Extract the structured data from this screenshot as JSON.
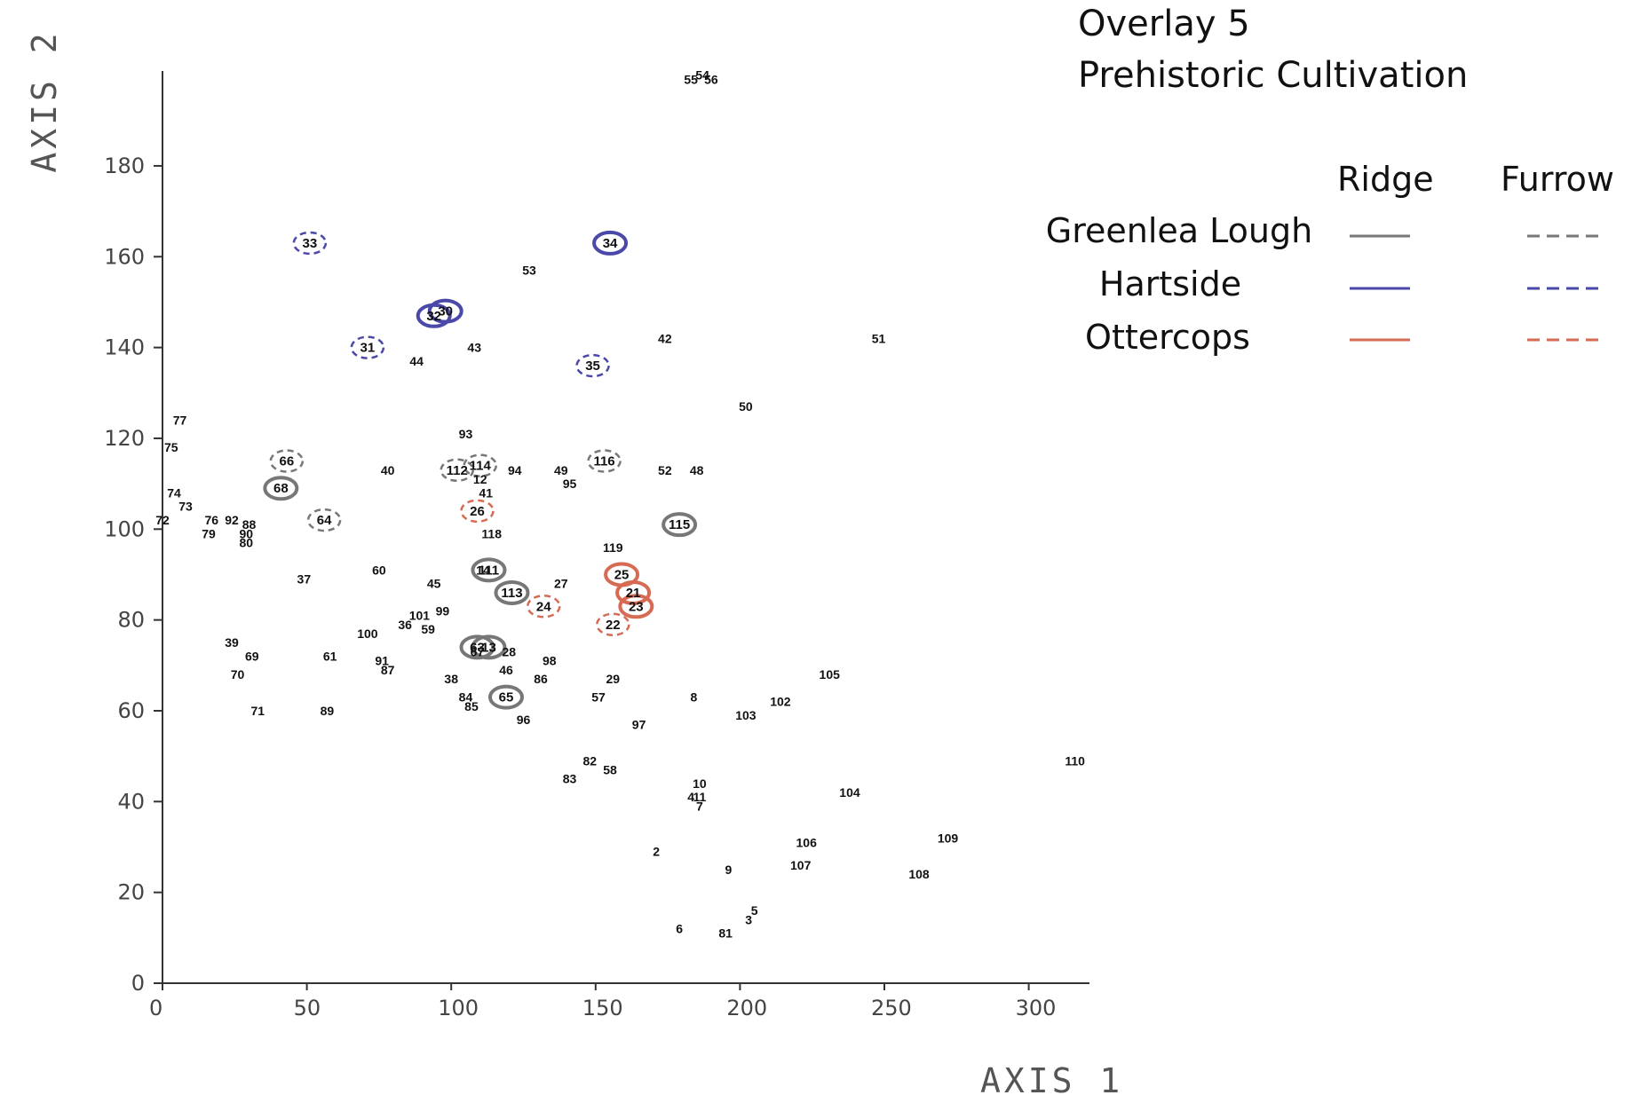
{
  "title": [
    "Overlay 5",
    "Prehistoric Cultivation"
  ],
  "chart_data": {
    "type": "scatter",
    "xlabel": "AXIS 1",
    "ylabel": "AXIS 2",
    "xlim": [
      0,
      320
    ],
    "ylim": [
      0,
      195
    ],
    "xticks": [
      "0",
      "50",
      "100",
      "150",
      "200",
      "250",
      "300"
    ],
    "yticks": [
      "0",
      "20",
      "40",
      "60",
      "80",
      "100",
      "120",
      "140",
      "160",
      "180"
    ],
    "legend": {
      "headers": [
        "Ridge",
        "Furrow"
      ],
      "placement": "top-right",
      "entries": [
        {
          "name": "Greenlea Lough",
          "color": "#777777"
        },
        {
          "name": "Hartside",
          "color": "#4a48a8"
        },
        {
          "name": "Ottercops",
          "color": "#d76a52"
        }
      ]
    },
    "points": [
      {
        "label": "2",
        "x": 171,
        "y": 29
      },
      {
        "label": "3",
        "x": 203,
        "y": 14
      },
      {
        "label": "4",
        "x": 183,
        "y": 41
      },
      {
        "label": "5",
        "x": 205,
        "y": 16
      },
      {
        "label": "6",
        "x": 179,
        "y": 12
      },
      {
        "label": "7",
        "x": 186,
        "y": 39
      },
      {
        "label": "8",
        "x": 184,
        "y": 63
      },
      {
        "label": "9",
        "x": 196,
        "y": 25
      },
      {
        "label": "10",
        "x": 186,
        "y": 44
      },
      {
        "label": "11",
        "x": 186,
        "y": 41
      },
      {
        "label": "12",
        "x": 110,
        "y": 111
      },
      {
        "label": "13",
        "x": 113,
        "y": 74
      },
      {
        "label": "14",
        "x": 111,
        "y": 91
      },
      {
        "label": "21",
        "x": 163,
        "y": 86
      },
      {
        "label": "22",
        "x": 156,
        "y": 79
      },
      {
        "label": "23",
        "x": 164,
        "y": 83
      },
      {
        "label": "24",
        "x": 132,
        "y": 83
      },
      {
        "label": "25",
        "x": 159,
        "y": 90
      },
      {
        "label": "26",
        "x": 109,
        "y": 104
      },
      {
        "label": "27",
        "x": 138,
        "y": 88
      },
      {
        "label": "28",
        "x": 120,
        "y": 73
      },
      {
        "label": "29",
        "x": 156,
        "y": 67
      },
      {
        "label": "30",
        "x": 98,
        "y": 148
      },
      {
        "label": "31",
        "x": 71,
        "y": 140
      },
      {
        "label": "32",
        "x": 94,
        "y": 147
      },
      {
        "label": "33",
        "x": 51,
        "y": 163
      },
      {
        "label": "34",
        "x": 155,
        "y": 163
      },
      {
        "label": "35",
        "x": 149,
        "y": 136
      },
      {
        "label": "36",
        "x": 84,
        "y": 79
      },
      {
        "label": "37",
        "x": 49,
        "y": 89
      },
      {
        "label": "38",
        "x": 100,
        "y": 67
      },
      {
        "label": "39",
        "x": 24,
        "y": 75
      },
      {
        "label": "40",
        "x": 78,
        "y": 113
      },
      {
        "label": "41",
        "x": 112,
        "y": 108
      },
      {
        "label": "42",
        "x": 174,
        "y": 142
      },
      {
        "label": "43",
        "x": 108,
        "y": 140
      },
      {
        "label": "44",
        "x": 88,
        "y": 137
      },
      {
        "label": "45",
        "x": 94,
        "y": 88
      },
      {
        "label": "46",
        "x": 119,
        "y": 69
      },
      {
        "label": "48",
        "x": 185,
        "y": 113
      },
      {
        "label": "49",
        "x": 138,
        "y": 113
      },
      {
        "label": "50",
        "x": 202,
        "y": 127
      },
      {
        "label": "51",
        "x": 248,
        "y": 142
      },
      {
        "label": "52",
        "x": 174,
        "y": 113
      },
      {
        "label": "53",
        "x": 127,
        "y": 157
      },
      {
        "label": "54",
        "x": 187,
        "y": 200
      },
      {
        "label": "55",
        "x": 183,
        "y": 199
      },
      {
        "label": "56",
        "x": 190,
        "y": 199
      },
      {
        "label": "57",
        "x": 151,
        "y": 63
      },
      {
        "label": "58",
        "x": 155,
        "y": 47
      },
      {
        "label": "59",
        "x": 92,
        "y": 78
      },
      {
        "label": "60",
        "x": 75,
        "y": 91
      },
      {
        "label": "61",
        "x": 58,
        "y": 72
      },
      {
        "label": "63",
        "x": 109,
        "y": 74
      },
      {
        "label": "64",
        "x": 56,
        "y": 102
      },
      {
        "label": "65",
        "x": 119,
        "y": 63
      },
      {
        "label": "66",
        "x": 43,
        "y": 115
      },
      {
        "label": "67",
        "x": 109,
        "y": 73
      },
      {
        "label": "68",
        "x": 41,
        "y": 109
      },
      {
        "label": "69",
        "x": 31,
        "y": 72
      },
      {
        "label": "70",
        "x": 26,
        "y": 68
      },
      {
        "label": "71",
        "x": 33,
        "y": 60
      },
      {
        "label": "72",
        "x": 0,
        "y": 102
      },
      {
        "label": "73",
        "x": 8,
        "y": 105
      },
      {
        "label": "74",
        "x": 4,
        "y": 108
      },
      {
        "label": "75",
        "x": 3,
        "y": 118
      },
      {
        "label": "76",
        "x": 17,
        "y": 102
      },
      {
        "label": "77",
        "x": 6,
        "y": 124
      },
      {
        "label": "79",
        "x": 16,
        "y": 99
      },
      {
        "label": "80",
        "x": 29,
        "y": 97
      },
      {
        "label": "81",
        "x": 195,
        "y": 11
      },
      {
        "label": "82",
        "x": 148,
        "y": 49
      },
      {
        "label": "83",
        "x": 141,
        "y": 45
      },
      {
        "label": "84",
        "x": 105,
        "y": 63
      },
      {
        "label": "85",
        "x": 107,
        "y": 61
      },
      {
        "label": "86",
        "x": 131,
        "y": 67
      },
      {
        "label": "87",
        "x": 78,
        "y": 69
      },
      {
        "label": "88",
        "x": 30,
        "y": 101
      },
      {
        "label": "89",
        "x": 57,
        "y": 60
      },
      {
        "label": "90",
        "x": 29,
        "y": 99
      },
      {
        "label": "91",
        "x": 76,
        "y": 71
      },
      {
        "label": "92",
        "x": 24,
        "y": 102
      },
      {
        "label": "93",
        "x": 105,
        "y": 121
      },
      {
        "label": "94",
        "x": 122,
        "y": 113
      },
      {
        "label": "95",
        "x": 141,
        "y": 110
      },
      {
        "label": "96",
        "x": 125,
        "y": 58
      },
      {
        "label": "97",
        "x": 165,
        "y": 57
      },
      {
        "label": "98",
        "x": 134,
        "y": 71
      },
      {
        "label": "99",
        "x": 97,
        "y": 82
      },
      {
        "label": "100",
        "x": 71,
        "y": 77
      },
      {
        "label": "101",
        "x": 89,
        "y": 81
      },
      {
        "label": "102",
        "x": 214,
        "y": 62
      },
      {
        "label": "103",
        "x": 202,
        "y": 59
      },
      {
        "label": "104",
        "x": 238,
        "y": 42
      },
      {
        "label": "105",
        "x": 231,
        "y": 68
      },
      {
        "label": "106",
        "x": 223,
        "y": 31
      },
      {
        "label": "107",
        "x": 221,
        "y": 26
      },
      {
        "label": "108",
        "x": 262,
        "y": 24
      },
      {
        "label": "109",
        "x": 272,
        "y": 32
      },
      {
        "label": "110",
        "x": 316,
        "y": 49
      },
      {
        "label": "111",
        "x": 113,
        "y": 91
      },
      {
        "label": "112",
        "x": 102,
        "y": 113
      },
      {
        "label": "113",
        "x": 121,
        "y": 86
      },
      {
        "label": "114",
        "x": 110,
        "y": 114
      },
      {
        "label": "115",
        "x": 179,
        "y": 101
      },
      {
        "label": "116",
        "x": 153,
        "y": 115
      },
      {
        "label": "118",
        "x": 114,
        "y": 99
      },
      {
        "label": "119",
        "x": 156,
        "y": 96
      }
    ],
    "highlights": [
      {
        "label": "33",
        "x": 51,
        "y": 163,
        "site": "Hartside",
        "type": "Furrow"
      },
      {
        "label": "34",
        "x": 155,
        "y": 163,
        "site": "Hartside",
        "type": "Ridge"
      },
      {
        "label": "30",
        "x": 98,
        "y": 148,
        "site": "Hartside",
        "type": "Ridge"
      },
      {
        "label": "32",
        "x": 94,
        "y": 147,
        "site": "Hartside",
        "type": "Ridge"
      },
      {
        "label": "31",
        "x": 71,
        "y": 140,
        "site": "Hartside",
        "type": "Furrow"
      },
      {
        "label": "35",
        "x": 149,
        "y": 136,
        "site": "Hartside",
        "type": "Furrow"
      },
      {
        "label": "66",
        "x": 43,
        "y": 115,
        "site": "Greenlea Lough",
        "type": "Furrow"
      },
      {
        "label": "68",
        "x": 41,
        "y": 109,
        "site": "Greenlea Lough",
        "type": "Ridge"
      },
      {
        "label": "64",
        "x": 56,
        "y": 102,
        "site": "Greenlea Lough",
        "type": "Furrow"
      },
      {
        "label": "112",
        "x": 102,
        "y": 113,
        "site": "Greenlea Lough",
        "type": "Furrow"
      },
      {
        "label": "114",
        "x": 110,
        "y": 114,
        "site": "Greenlea Lough",
        "type": "Furrow"
      },
      {
        "label": "116",
        "x": 153,
        "y": 115,
        "site": "Greenlea Lough",
        "type": "Furrow"
      },
      {
        "label": "115",
        "x": 179,
        "y": 101,
        "site": "Greenlea Lough",
        "type": "Ridge"
      },
      {
        "label": "111",
        "x": 113,
        "y": 91,
        "site": "Greenlea Lough",
        "type": "Ridge"
      },
      {
        "label": "113",
        "x": 121,
        "y": 86,
        "site": "Greenlea Lough",
        "type": "Ridge"
      },
      {
        "label": "63",
        "x": 109,
        "y": 74,
        "site": "Greenlea Lough",
        "type": "Ridge"
      },
      {
        "label": "13",
        "x": 113,
        "y": 74,
        "site": "Greenlea Lough",
        "type": "Ridge"
      },
      {
        "label": "65",
        "x": 119,
        "y": 63,
        "site": "Greenlea Lough",
        "type": "Ridge"
      },
      {
        "label": "26",
        "x": 109,
        "y": 104,
        "site": "Ottercops",
        "type": "Furrow"
      },
      {
        "label": "24",
        "x": 132,
        "y": 83,
        "site": "Ottercops",
        "type": "Furrow"
      },
      {
        "label": "25",
        "x": 159,
        "y": 90,
        "site": "Ottercops",
        "type": "Ridge"
      },
      {
        "label": "21",
        "x": 163,
        "y": 86,
        "site": "Ottercops",
        "type": "Ridge"
      },
      {
        "label": "23",
        "x": 164,
        "y": 83,
        "site": "Ottercops",
        "type": "Ridge"
      },
      {
        "label": "22",
        "x": 156,
        "y": 79,
        "site": "Ottercops",
        "type": "Furrow"
      }
    ]
  }
}
